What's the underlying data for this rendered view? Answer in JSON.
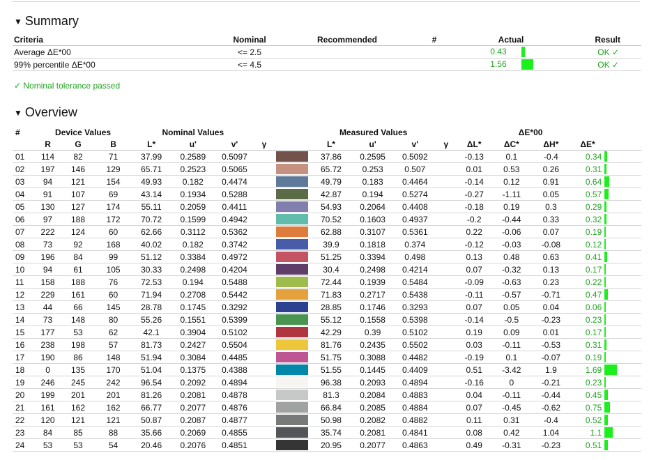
{
  "summary": {
    "title": "Summary",
    "headers": {
      "criteria": "Criteria",
      "nominal": "Nominal",
      "recommended": "Recommended",
      "hash": "#",
      "actual": "Actual",
      "result": "Result"
    },
    "rows": [
      {
        "criteria": "Average ΔE*00",
        "nominal": "<= 2.5",
        "recommended": "",
        "hash": "",
        "actual": "0.43",
        "actual_fraction": 0.12,
        "result": "OK ✓"
      },
      {
        "criteria": "99% percentile ΔE*00",
        "nominal": "<= 4.5",
        "recommended": "",
        "hash": "",
        "actual": "1.56",
        "actual_fraction": 0.42,
        "result": "OK ✓"
      }
    ],
    "pass_text": "✓ Nominal tolerance passed"
  },
  "overview": {
    "title": "Overview",
    "group_headers": {
      "hash": "#",
      "device": "Device Values",
      "nominal": "Nominal Values",
      "measured": "Measured Values",
      "de00": "ΔE*00"
    },
    "col_headers": {
      "r": "R",
      "g": "G",
      "b": "B",
      "nl": "L*",
      "nu": "u'",
      "nv": "v'",
      "ng": "γ",
      "ml": "L*",
      "mu": "u'",
      "mv": "v'",
      "mg": "γ",
      "dl": "ΔL*",
      "dc": "ΔC*",
      "dh": "ΔH*",
      "de": "ΔE*"
    },
    "rows": [
      {
        "n": "01",
        "r": "114",
        "g": "82",
        "b": "71",
        "nl": "37.99",
        "nu": "0.2589",
        "nv": "0.5097",
        "color": "#72524a",
        "ml": "37.86",
        "mu": "0.2595",
        "mv": "0.5092",
        "dl": "-0.13",
        "dc": "0.1",
        "dh": "-0.4",
        "de": "0.34",
        "de_val": 0.34
      },
      {
        "n": "02",
        "r": "197",
        "g": "146",
        "b": "129",
        "nl": "65.71",
        "nu": "0.2523",
        "nv": "0.5065",
        "color": "#c59281",
        "ml": "65.72",
        "mu": "0.253",
        "mv": "0.507",
        "dl": "0.01",
        "dc": "0.53",
        "dh": "0.26",
        "de": "0.31",
        "de_val": 0.31
      },
      {
        "n": "03",
        "r": "94",
        "g": "121",
        "b": "154",
        "nl": "49.93",
        "nu": "0.182",
        "nv": "0.4474",
        "color": "#5e799a",
        "ml": "49.79",
        "mu": "0.183",
        "mv": "0.4464",
        "dl": "-0.14",
        "dc": "0.12",
        "dh": "0.91",
        "de": "0.64",
        "de_val": 0.64
      },
      {
        "n": "04",
        "r": "91",
        "g": "107",
        "b": "69",
        "nl": "43.14",
        "nu": "0.1934",
        "nv": "0.5288",
        "color": "#5b6b45",
        "ml": "42.87",
        "mu": "0.194",
        "mv": "0.5274",
        "dl": "-0.27",
        "dc": "-1.11",
        "dh": "0.05",
        "de": "0.57",
        "de_val": 0.57
      },
      {
        "n": "05",
        "r": "130",
        "g": "127",
        "b": "174",
        "nl": "55.11",
        "nu": "0.2059",
        "nv": "0.4411",
        "color": "#827fae",
        "ml": "54.93",
        "mu": "0.2064",
        "mv": "0.4408",
        "dl": "-0.18",
        "dc": "0.19",
        "dh": "0.3",
        "de": "0.29",
        "de_val": 0.29
      },
      {
        "n": "06",
        "r": "97",
        "g": "188",
        "b": "172",
        "nl": "70.72",
        "nu": "0.1599",
        "nv": "0.4942",
        "color": "#61bcac",
        "ml": "70.52",
        "mu": "0.1603",
        "mv": "0.4937",
        "dl": "-0.2",
        "dc": "-0.44",
        "dh": "0.33",
        "de": "0.32",
        "de_val": 0.32
      },
      {
        "n": "07",
        "r": "222",
        "g": "124",
        "b": "60",
        "nl": "62.66",
        "nu": "0.3112",
        "nv": "0.5362",
        "color": "#de7c3c",
        "ml": "62.88",
        "mu": "0.3107",
        "mv": "0.5361",
        "dl": "0.22",
        "dc": "-0.06",
        "dh": "0.07",
        "de": "0.19",
        "de_val": 0.19
      },
      {
        "n": "08",
        "r": "73",
        "g": "92",
        "b": "168",
        "nl": "40.02",
        "nu": "0.182",
        "nv": "0.3742",
        "color": "#495ca8",
        "ml": "39.9",
        "mu": "0.1818",
        "mv": "0.374",
        "dl": "-0.12",
        "dc": "-0.03",
        "dh": "-0.08",
        "de": "0.12",
        "de_val": 0.12
      },
      {
        "n": "09",
        "r": "196",
        "g": "84",
        "b": "99",
        "nl": "51.12",
        "nu": "0.3384",
        "nv": "0.4972",
        "color": "#c45463",
        "ml": "51.25",
        "mu": "0.3394",
        "mv": "0.498",
        "dl": "0.13",
        "dc": "0.48",
        "dh": "0.63",
        "de": "0.41",
        "de_val": 0.41
      },
      {
        "n": "10",
        "r": "94",
        "g": "61",
        "b": "105",
        "nl": "30.33",
        "nu": "0.2498",
        "nv": "0.4204",
        "color": "#5e3d69",
        "ml": "30.4",
        "mu": "0.2498",
        "mv": "0.4214",
        "dl": "0.07",
        "dc": "-0.32",
        "dh": "0.13",
        "de": "0.17",
        "de_val": 0.17
      },
      {
        "n": "11",
        "r": "158",
        "g": "188",
        "b": "76",
        "nl": "72.53",
        "nu": "0.194",
        "nv": "0.5488",
        "color": "#9ebc4c",
        "ml": "72.44",
        "mu": "0.1939",
        "mv": "0.5484",
        "dl": "-0.09",
        "dc": "-0.63",
        "dh": "0.23",
        "de": "0.22",
        "de_val": 0.22
      },
      {
        "n": "12",
        "r": "229",
        "g": "161",
        "b": "60",
        "nl": "71.94",
        "nu": "0.2708",
        "nv": "0.5442",
        "color": "#e5a13c",
        "ml": "71.83",
        "mu": "0.2717",
        "mv": "0.5438",
        "dl": "-0.11",
        "dc": "-0.57",
        "dh": "-0.71",
        "de": "0.47",
        "de_val": 0.47
      },
      {
        "n": "13",
        "r": "44",
        "g": "66",
        "b": "145",
        "nl": "28.78",
        "nu": "0.1745",
        "nv": "0.3292",
        "color": "#2c4291",
        "ml": "28.85",
        "mu": "0.1746",
        "mv": "0.3293",
        "dl": "0.07",
        "dc": "0.05",
        "dh": "0.04",
        "de": "0.06",
        "de_val": 0.06
      },
      {
        "n": "14",
        "r": "73",
        "g": "148",
        "b": "80",
        "nl": "55.26",
        "nu": "0.1551",
        "nv": "0.5399",
        "color": "#499450",
        "ml": "55.12",
        "mu": "0.1558",
        "mv": "0.5398",
        "dl": "-0.14",
        "dc": "-0.5",
        "dh": "-0.23",
        "de": "0.23",
        "de_val": 0.23
      },
      {
        "n": "15",
        "r": "177",
        "g": "53",
        "b": "62",
        "nl": "42.1",
        "nu": "0.3904",
        "nv": "0.5102",
        "color": "#b1353e",
        "ml": "42.29",
        "mu": "0.39",
        "mv": "0.5102",
        "dl": "0.19",
        "dc": "0.09",
        "dh": "0.01",
        "de": "0.17",
        "de_val": 0.17
      },
      {
        "n": "16",
        "r": "238",
        "g": "198",
        "b": "57",
        "nl": "81.73",
        "nu": "0.2427",
        "nv": "0.5504",
        "color": "#eec639",
        "ml": "81.76",
        "mu": "0.2435",
        "mv": "0.5502",
        "dl": "0.03",
        "dc": "-0.11",
        "dh": "-0.53",
        "de": "0.31",
        "de_val": 0.31
      },
      {
        "n": "17",
        "r": "190",
        "g": "86",
        "b": "148",
        "nl": "51.94",
        "nu": "0.3084",
        "nv": "0.4485",
        "color": "#be5694",
        "ml": "51.75",
        "mu": "0.3088",
        "mv": "0.4482",
        "dl": "-0.19",
        "dc": "0.1",
        "dh": "-0.07",
        "de": "0.19",
        "de_val": 0.19
      },
      {
        "n": "18",
        "r": "0",
        "g": "135",
        "b": "170",
        "nl": "51.04",
        "nu": "0.1375",
        "nv": "0.4388",
        "color": "#0087aa",
        "ml": "51.55",
        "mu": "0.1445",
        "mv": "0.4409",
        "dl": "0.51",
        "dc": "-3.42",
        "dh": "1.9",
        "de": "1.69",
        "de_val": 1.69
      },
      {
        "n": "19",
        "r": "246",
        "g": "245",
        "b": "242",
        "nl": "96.54",
        "nu": "0.2092",
        "nv": "0.4894",
        "color": "#f6f5f2",
        "ml": "96.38",
        "mu": "0.2093",
        "mv": "0.4894",
        "dl": "-0.16",
        "dc": "0",
        "dh": "-0.21",
        "de": "0.23",
        "de_val": 0.23
      },
      {
        "n": "20",
        "r": "199",
        "g": "201",
        "b": "201",
        "nl": "81.26",
        "nu": "0.2081",
        "nv": "0.4878",
        "color": "#c7c9c9",
        "ml": "81.3",
        "mu": "0.2084",
        "mv": "0.4883",
        "dl": "0.04",
        "dc": "-0.11",
        "dh": "-0.44",
        "de": "0.45",
        "de_val": 0.45
      },
      {
        "n": "21",
        "r": "161",
        "g": "162",
        "b": "162",
        "nl": "66.77",
        "nu": "0.2077",
        "nv": "0.4876",
        "color": "#a1a2a2",
        "ml": "66.84",
        "mu": "0.2085",
        "mv": "0.4884",
        "dl": "0.07",
        "dc": "-0.45",
        "dh": "-0.62",
        "de": "0.75",
        "de_val": 0.75
      },
      {
        "n": "22",
        "r": "120",
        "g": "121",
        "b": "121",
        "nl": "50.87",
        "nu": "0.2087",
        "nv": "0.4877",
        "color": "#787979",
        "ml": "50.98",
        "mu": "0.2082",
        "mv": "0.4882",
        "dl": "0.11",
        "dc": "0.31",
        "dh": "-0.4",
        "de": "0.52",
        "de_val": 0.52
      },
      {
        "n": "23",
        "r": "84",
        "g": "85",
        "b": "88",
        "nl": "35.66",
        "nu": "0.2069",
        "nv": "0.4855",
        "color": "#545558",
        "ml": "35.74",
        "mu": "0.2081",
        "mv": "0.4841",
        "dl": "0.08",
        "dc": "0.42",
        "dh": "1.04",
        "de": "1.1",
        "de_val": 1.1
      },
      {
        "n": "24",
        "r": "53",
        "g": "53",
        "b": "54",
        "nl": "20.46",
        "nu": "0.2076",
        "nv": "0.4851",
        "color": "#353536",
        "ml": "20.95",
        "mu": "0.2077",
        "mv": "0.4863",
        "dl": "0.49",
        "dc": "-0.31",
        "dh": "-0.23",
        "de": "0.51",
        "de_val": 0.51
      }
    ]
  }
}
